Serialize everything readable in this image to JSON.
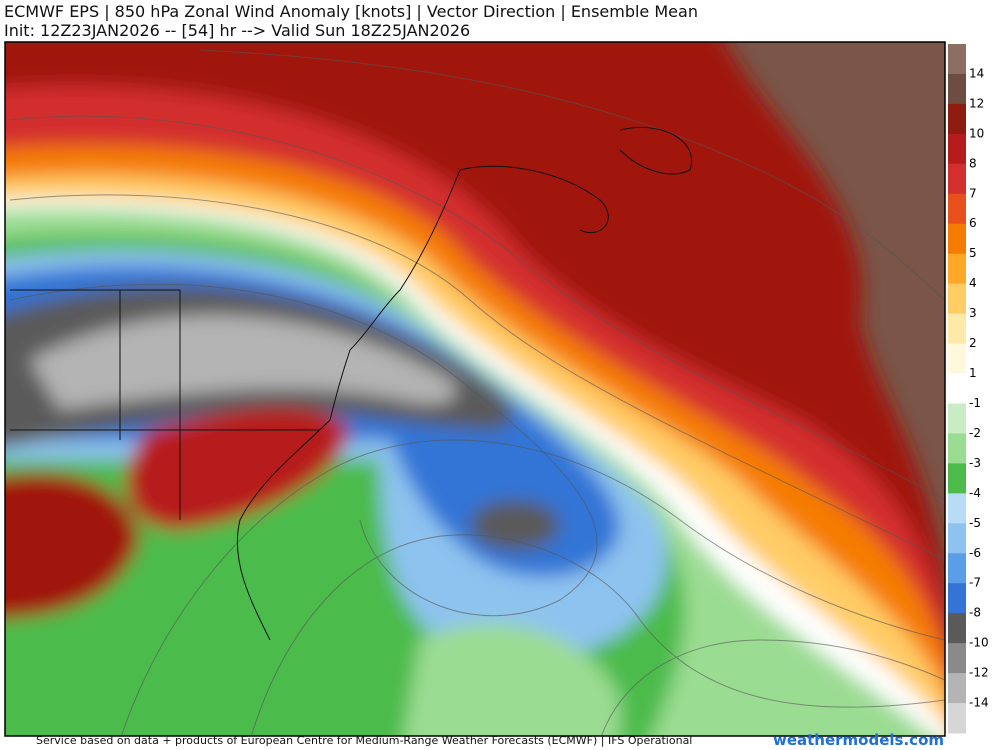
{
  "header": {
    "title": "ECMWF EPS | 850 hPa Zonal Wind Anomaly [knots] | Vector Direction | Ensemble Mean",
    "subtitle": "Init: 12Z23JAN2026 -- [54] hr --> Valid Sun 18Z25JAN2026"
  },
  "colorbar": {
    "levels": [
      14,
      12,
      10,
      8,
      7,
      6,
      5,
      4,
      3,
      2,
      1,
      -1,
      -2,
      -3,
      -4,
      -5,
      -6,
      -7,
      -8,
      -10,
      -12,
      -14
    ],
    "colors": [
      "#8d6e63",
      "#6d4c41",
      "#8e1b10",
      "#b71c1c",
      "#d32f2f",
      "#e8501e",
      "#f57c00",
      "#ffa726",
      "#ffcc66",
      "#ffe9a8",
      "#fff8dc",
      "#ffffff",
      "#c9ecc4",
      "#9bdc93",
      "#4cbb4c",
      "#b8dcf5",
      "#8ec3ef",
      "#5a9ee8",
      "#3374d6",
      "#5a5a5a",
      "#8a8a8a",
      "#b4b4b4",
      "#d6d6d6"
    ]
  },
  "footer": {
    "credit": "Service based on data + products of European Centre for Medium-Range Weather Forecasts (ECMWF) | IFS Operational",
    "logo": "weathermodels.com"
  }
}
